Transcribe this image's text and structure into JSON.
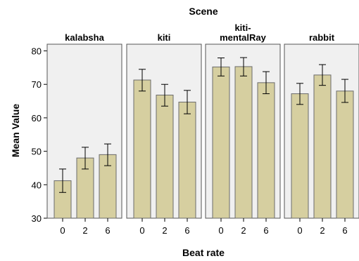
{
  "chart_data": {
    "type": "bar",
    "title": "Scene",
    "xlabel": "Beat rate",
    "ylabel": "Mean Value",
    "ylim": [
      30,
      82
    ],
    "yticks": [
      30,
      40,
      50,
      60,
      70,
      80
    ],
    "categories": [
      "0",
      "2",
      "6"
    ],
    "error_bars": true,
    "grid": false,
    "bar_color": "#d6cfa0",
    "panel_color": "#f0f0f0",
    "panels": [
      {
        "name": "kalabsha",
        "values": [
          41.2,
          48.0,
          49.0
        ],
        "err_low": [
          37.7,
          44.7,
          45.7
        ],
        "err_high": [
          44.7,
          51.2,
          52.2
        ]
      },
      {
        "name": "kiti",
        "values": [
          71.3,
          66.8,
          64.7
        ],
        "err_low": [
          68.0,
          63.5,
          61.2
        ],
        "err_high": [
          74.5,
          70.0,
          68.2
        ]
      },
      {
        "name": "kiti-\nmentalRay",
        "values": [
          75.2,
          75.3,
          70.5
        ],
        "err_low": [
          72.5,
          72.5,
          67.2
        ],
        "err_high": [
          77.9,
          78.0,
          73.8
        ]
      },
      {
        "name": "rabbit",
        "values": [
          67.2,
          72.8,
          68.0
        ],
        "err_low": [
          64.0,
          69.7,
          64.6
        ],
        "err_high": [
          70.3,
          75.9,
          71.5
        ]
      }
    ]
  }
}
